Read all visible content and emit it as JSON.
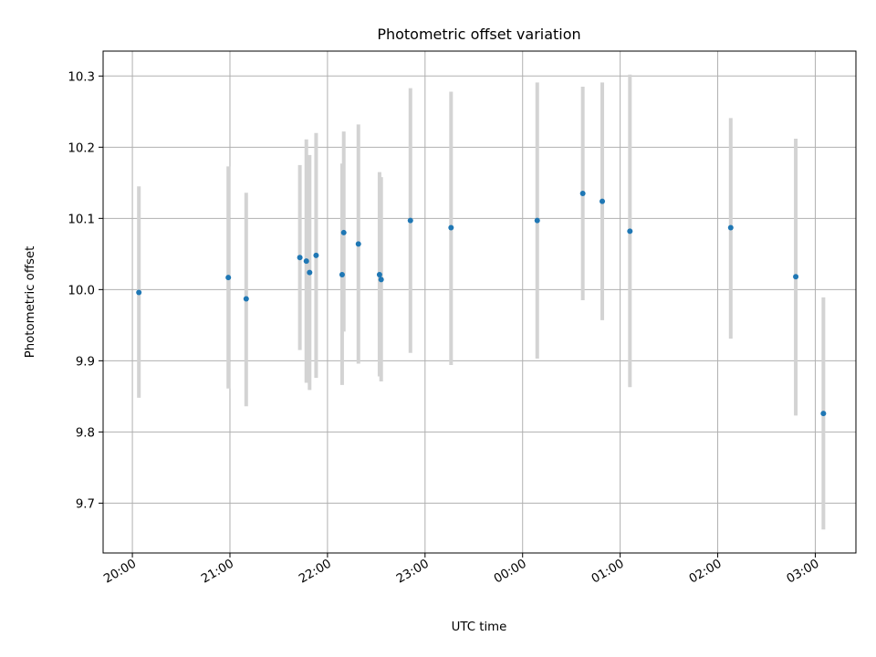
{
  "chart_data": {
    "type": "scatter",
    "title": "Photometric offset variation",
    "xlabel": "UTC time",
    "ylabel": "Photometric offset",
    "x_axis": {
      "kind": "time",
      "start_time": "19:42",
      "end_time": "03:25",
      "ticks": [
        "20:00",
        "21:00",
        "22:00",
        "23:00",
        "00:00",
        "01:00",
        "02:00",
        "03:00"
      ],
      "tick_label_rotation": "30 degrees"
    },
    "y_axis": {
      "ylim": [
        9.63,
        10.335
      ],
      "ticks": [
        "9.7",
        "9.8",
        "9.9",
        "10.0",
        "10.1",
        "10.2",
        "10.3"
      ]
    },
    "grid": true,
    "legend": "none",
    "colors": {
      "point": "#1f77b4",
      "errorbar": "#d3d3d3",
      "grid": "#b0b0b0"
    },
    "points": [
      {
        "time": "20:04",
        "y": 9.996,
        "yerr_low": 9.848,
        "yerr_high": 10.145
      },
      {
        "time": "20:59",
        "y": 10.017,
        "yerr_low": 9.861,
        "yerr_high": 10.173
      },
      {
        "time": "21:10",
        "y": 9.987,
        "yerr_low": 9.836,
        "yerr_high": 10.136
      },
      {
        "time": "21:43",
        "y": 10.045,
        "yerr_low": 9.915,
        "yerr_high": 10.175
      },
      {
        "time": "21:47",
        "y": 10.04,
        "yerr_low": 9.869,
        "yerr_high": 10.211
      },
      {
        "time": "21:49",
        "y": 10.024,
        "yerr_low": 9.859,
        "yerr_high": 10.189
      },
      {
        "time": "21:53",
        "y": 10.048,
        "yerr_low": 9.876,
        "yerr_high": 10.22
      },
      {
        "time": "22:09",
        "y": 10.021,
        "yerr_low": 9.866,
        "yerr_high": 10.177
      },
      {
        "time": "22:10",
        "y": 10.08,
        "yerr_low": 9.941,
        "yerr_high": 10.222
      },
      {
        "time": "22:19",
        "y": 10.064,
        "yerr_low": 9.896,
        "yerr_high": 10.232
      },
      {
        "time": "22:32",
        "y": 10.021,
        "yerr_low": 9.878,
        "yerr_high": 10.165
      },
      {
        "time": "22:33",
        "y": 10.014,
        "yerr_low": 9.871,
        "yerr_high": 10.158
      },
      {
        "time": "22:51",
        "y": 10.097,
        "yerr_low": 9.911,
        "yerr_high": 10.283
      },
      {
        "time": "23:16",
        "y": 10.087,
        "yerr_low": 9.894,
        "yerr_high": 10.278
      },
      {
        "time": "00:09",
        "y": 10.097,
        "yerr_low": 9.903,
        "yerr_high": 10.291
      },
      {
        "time": "00:37",
        "y": 10.135,
        "yerr_low": 9.985,
        "yerr_high": 10.285
      },
      {
        "time": "00:49",
        "y": 10.124,
        "yerr_low": 9.957,
        "yerr_high": 10.291
      },
      {
        "time": "01:06",
        "y": 10.082,
        "yerr_low": 9.863,
        "yerr_high": 10.302
      },
      {
        "time": "02:08",
        "y": 10.087,
        "yerr_low": 9.931,
        "yerr_high": 10.241
      },
      {
        "time": "02:48",
        "y": 10.018,
        "yerr_low": 9.823,
        "yerr_high": 10.212
      },
      {
        "time": "03:05",
        "y": 9.826,
        "yerr_low": 9.663,
        "yerr_high": 9.989
      }
    ]
  }
}
